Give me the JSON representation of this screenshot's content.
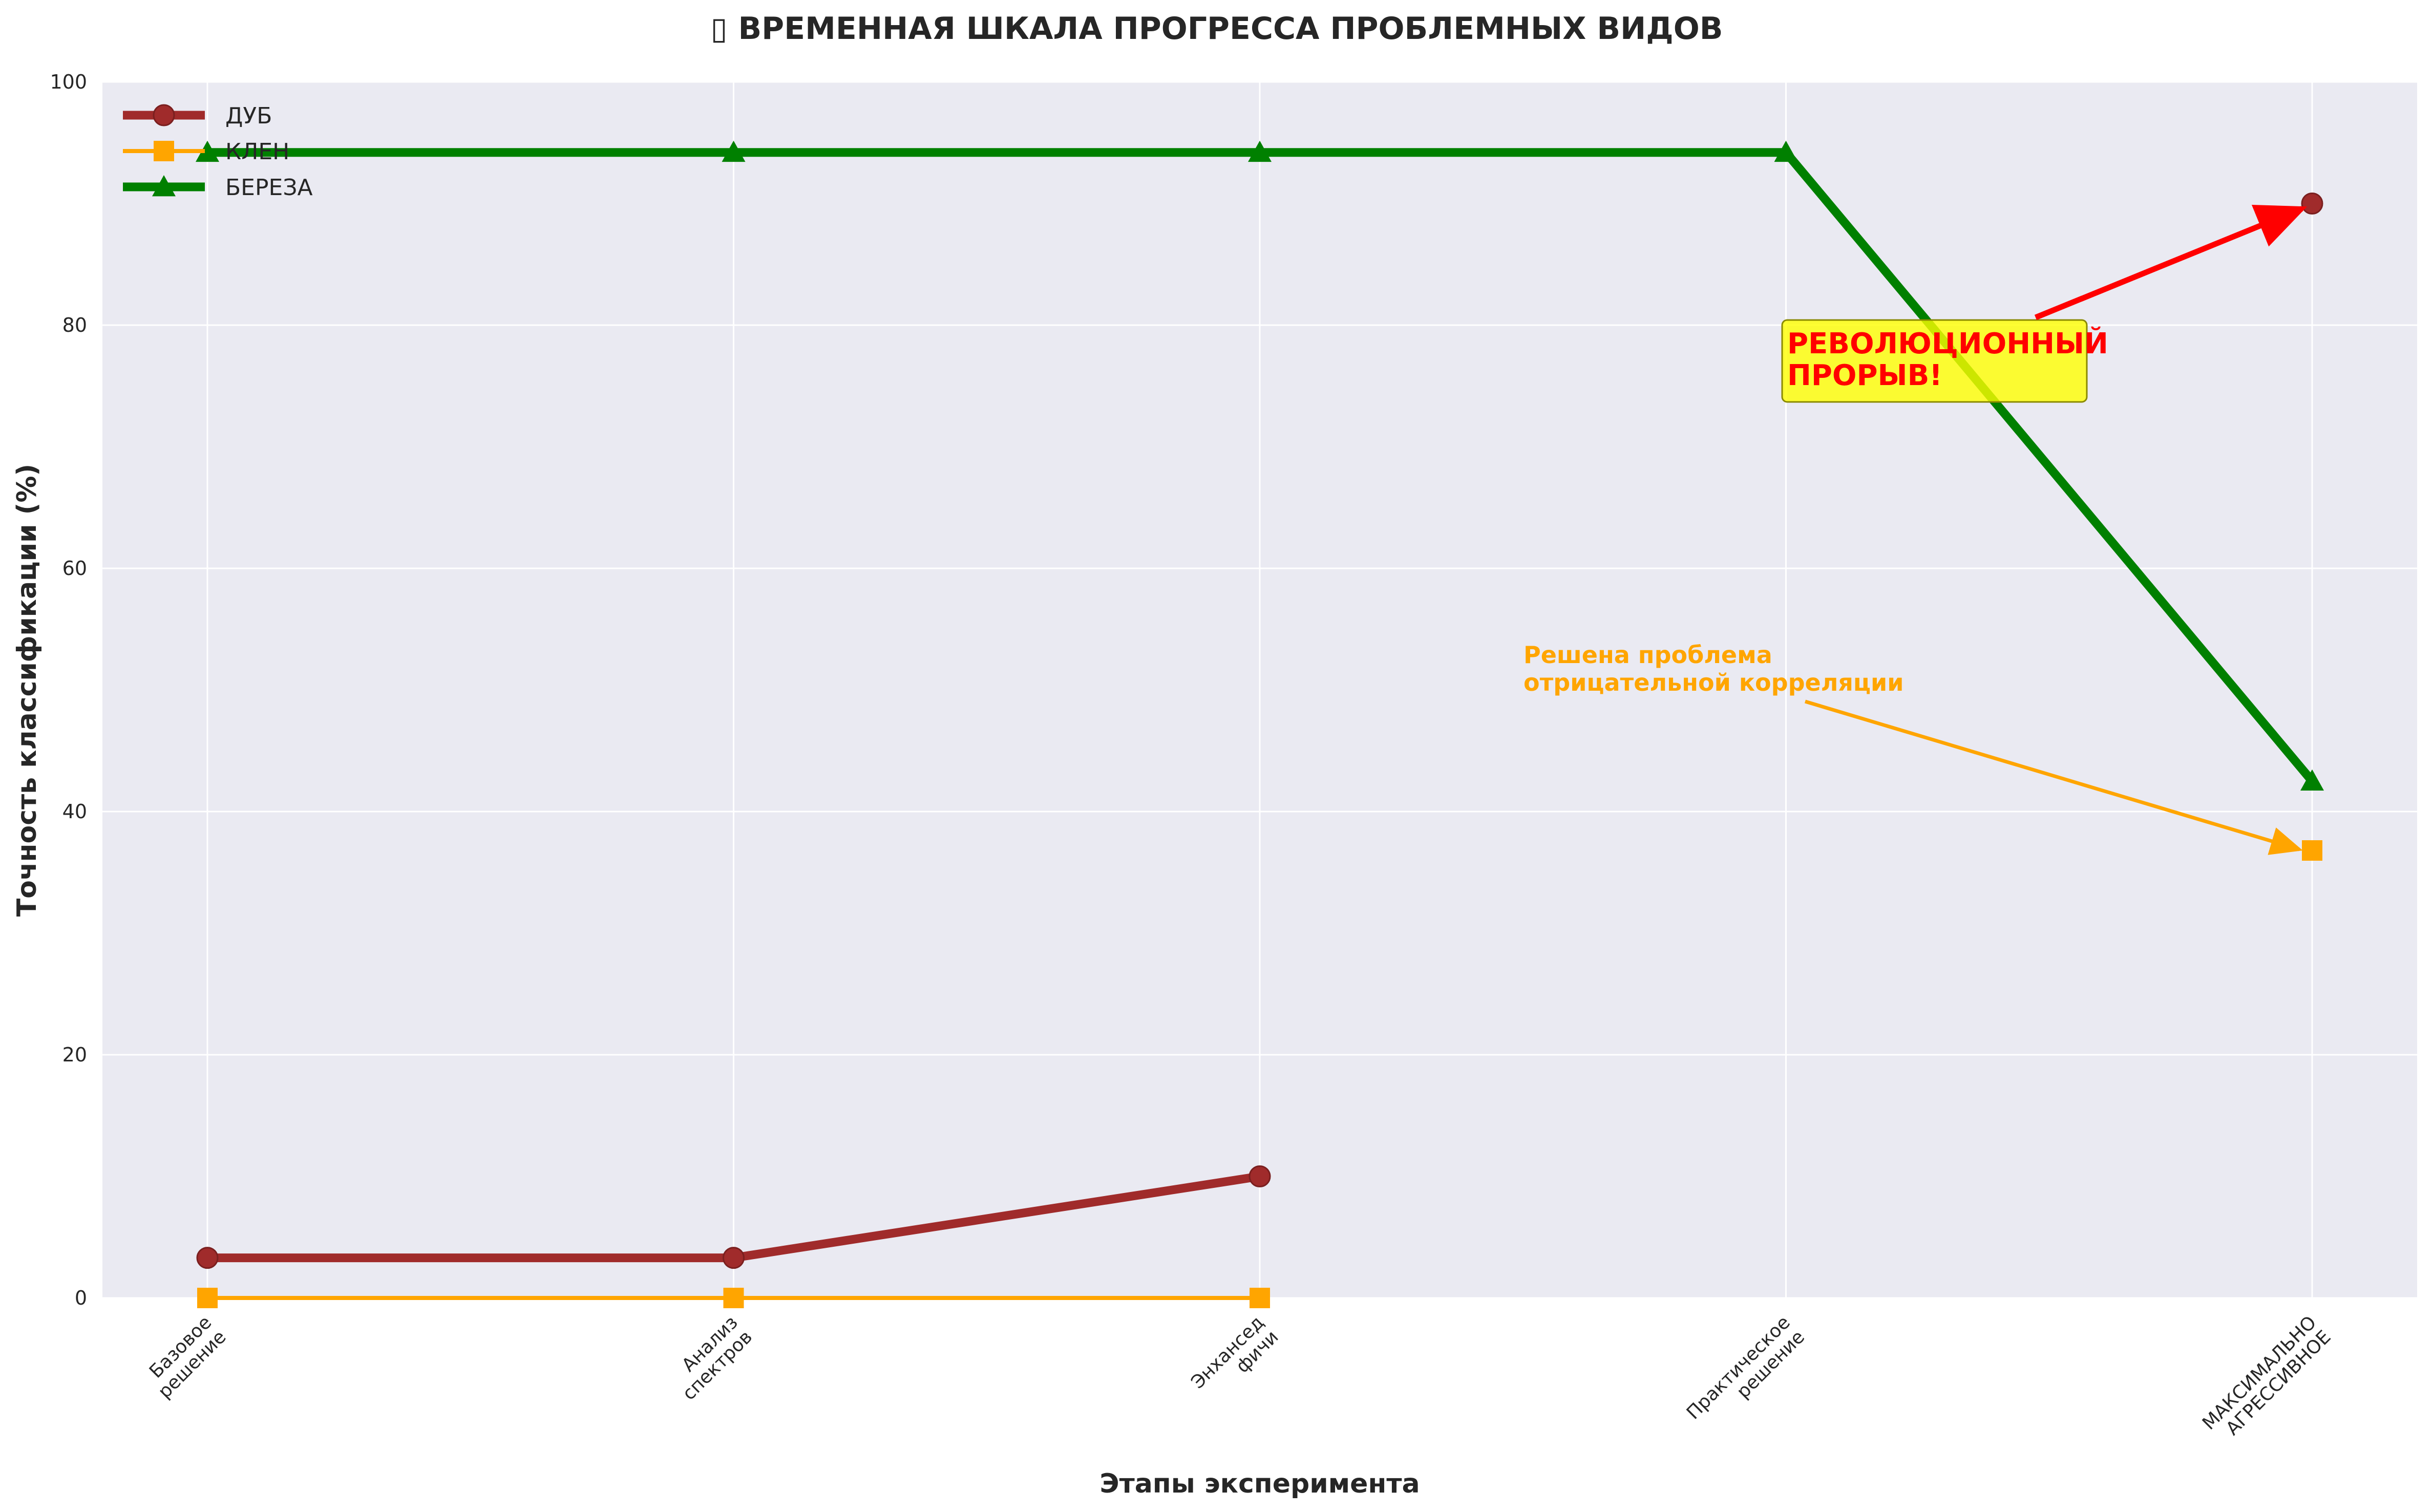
{
  "chart_data": {
    "type": "line",
    "title": "▯ ВРЕМЕННАЯ ШКАЛА ПРОГРЕССА ПРОБЛЕМНЫХ ВИДОВ",
    "xlabel": "Этапы эксперимента",
    "ylabel": "Точность классификации (%)",
    "ylim": [
      0,
      100
    ],
    "yticks": [
      "0",
      "20",
      "40",
      "60",
      "80",
      "100"
    ],
    "categories": [
      [
        "Базовое",
        "решение"
      ],
      [
        "Анализ",
        "спектров"
      ],
      [
        "Энхансед",
        "фичи"
      ],
      [
        "Практическое",
        "решение"
      ],
      [
        "МАКСИМАЛЬНО",
        "АГРЕССИВНОЕ"
      ]
    ],
    "grid": true,
    "legend_position": "top-left",
    "series": [
      {
        "name": "ДУБ",
        "color": "#a02b2b",
        "marker": "circle",
        "x": [
          0,
          1,
          2,
          4
        ],
        "values": [
          3.3,
          3.3,
          10.0,
          90.0
        ]
      },
      {
        "name": "КЛЕН",
        "color": "#ffa500",
        "marker": "square",
        "x": [
          0,
          1,
          2,
          4
        ],
        "values": [
          0,
          0,
          0,
          36.8
        ]
      },
      {
        "name": "БЕРЕЗА",
        "color": "#008000",
        "marker": "triangle",
        "x": [
          0,
          1,
          2,
          3,
          4
        ],
        "values": [
          94.2,
          94.2,
          94.2,
          94.2,
          42.5
        ]
      }
    ],
    "annotations": [
      {
        "text": [
          "РЕВОЛЮЦИОННЫЙ",
          "ПРОРЫВ!"
        ],
        "color": "#ff0000",
        "box_color": "#ffff00",
        "points_to": {
          "series": "ДУБ",
          "x": 4,
          "y": 90.0
        }
      },
      {
        "text": [
          "Решена проблема",
          "отрицательной корреляции"
        ],
        "color": "#ffa500",
        "points_to": {
          "series": "КЛЕН",
          "x": 4,
          "y": 36.8
        }
      }
    ]
  }
}
